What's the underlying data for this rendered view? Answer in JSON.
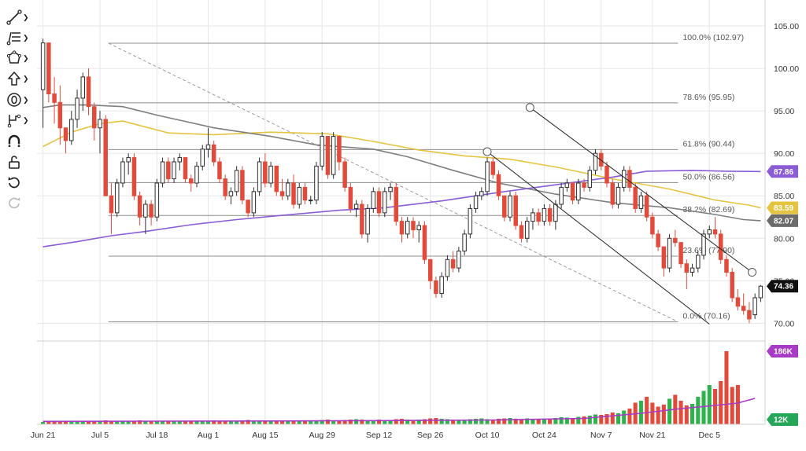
{
  "toolbar": {
    "items": [
      {
        "name": "trend-line-tool",
        "icon": "trend-line-icon"
      },
      {
        "name": "fib-tool",
        "icon": "fib-retracement-icon"
      },
      {
        "name": "shapes-tool",
        "icon": "shapes-icon"
      },
      {
        "name": "arrow-tool",
        "icon": "arrow-up-icon"
      },
      {
        "name": "annotation-tool",
        "icon": "annotation-icon"
      },
      {
        "name": "measure-tool",
        "icon": "measure-icon"
      },
      {
        "name": "magnet-tool",
        "icon": "magnet-icon"
      },
      {
        "name": "lock-tool",
        "icon": "lock-icon"
      },
      {
        "name": "undo-tool",
        "icon": "undo-icon"
      },
      {
        "name": "redo-tool",
        "icon": "redo-icon"
      }
    ]
  },
  "chart_data": {
    "type": "candlestick",
    "x_labels": [
      "Jun 21",
      "Jul 5",
      "Jul 18",
      "Aug 1",
      "Aug 15",
      "Aug 29",
      "Sep 12",
      "Sep 26",
      "Oct 10",
      "Oct 24",
      "Nov 7",
      "Nov 21",
      "Dec 5"
    ],
    "y_ticks": [
      70.0,
      75.0,
      80.0,
      85.0,
      90.0,
      95.0,
      100.0,
      105.0
    ],
    "y_tick_labels": [
      "70.00",
      "75.00",
      "80.00",
      "85.00",
      "90.00",
      "95.00",
      "100.00",
      "105.00"
    ],
    "ylim": [
      68.0,
      107.5
    ],
    "candles": [
      [
        97.5,
        103.5,
        93.0,
        103.0
      ],
      [
        103.0,
        103.0,
        96.0,
        97.0
      ],
      [
        97.0,
        99.0,
        93.5,
        96.0
      ],
      [
        96.0,
        98.0,
        91.0,
        93.0
      ],
      [
        93.0,
        93.0,
        90.0,
        91.5
      ],
      [
        91.5,
        95.0,
        91.0,
        94.0
      ],
      [
        94.0,
        97.5,
        93.0,
        96.5
      ],
      [
        96.5,
        99.5,
        95.0,
        99.0
      ],
      [
        99.0,
        100.0,
        94.5,
        95.5
      ],
      [
        95.5,
        96.0,
        91.5,
        93.0
      ],
      [
        93.0,
        95.0,
        90.0,
        94.0
      ],
      [
        94.0,
        94.5,
        85.0,
        85.0
      ],
      [
        85.0,
        86.5,
        80.5,
        83.0
      ],
      [
        83.0,
        87.0,
        82.5,
        86.5
      ],
      [
        86.5,
        89.5,
        86.0,
        89.0
      ],
      [
        89.0,
        90.0,
        87.5,
        89.5
      ],
      [
        89.5,
        90.0,
        84.5,
        85.0
      ],
      [
        85.0,
        85.5,
        81.5,
        82.5
      ],
      [
        82.5,
        84.5,
        80.5,
        84.0
      ],
      [
        84.0,
        84.5,
        81.5,
        82.5
      ],
      [
        82.5,
        87.0,
        82.0,
        86.5
      ],
      [
        86.5,
        89.5,
        86.0,
        89.0
      ],
      [
        89.0,
        89.5,
        86.5,
        87.0
      ],
      [
        87.0,
        89.5,
        86.5,
        89.0
      ],
      [
        89.0,
        90.0,
        88.0,
        89.5
      ],
      [
        89.5,
        89.5,
        86.5,
        87.0
      ],
      [
        87.0,
        87.5,
        85.5,
        86.5
      ],
      [
        86.5,
        89.0,
        86.0,
        88.5
      ],
      [
        88.5,
        91.0,
        88.0,
        90.5
      ],
      [
        90.5,
        93.0,
        89.5,
        91.0
      ],
      [
        91.0,
        91.5,
        88.5,
        89.0
      ],
      [
        89.0,
        89.5,
        86.5,
        87.0
      ],
      [
        87.0,
        87.5,
        84.5,
        85.0
      ],
      [
        85.0,
        86.0,
        84.0,
        85.5
      ],
      [
        85.5,
        88.5,
        85.0,
        88.0
      ],
      [
        88.0,
        88.5,
        84.0,
        84.5
      ],
      [
        84.5,
        84.5,
        82.5,
        83.0
      ],
      [
        83.0,
        86.0,
        82.5,
        85.5
      ],
      [
        85.5,
        89.5,
        85.0,
        89.0
      ],
      [
        89.0,
        90.0,
        86.0,
        86.5
      ],
      [
        86.5,
        89.0,
        86.0,
        88.5
      ],
      [
        88.5,
        88.5,
        85.0,
        85.5
      ],
      [
        85.5,
        87.0,
        84.5,
        85.0
      ],
      [
        85.0,
        87.0,
        84.5,
        86.5
      ],
      [
        86.5,
        87.5,
        83.5,
        84.0
      ],
      [
        84.0,
        86.5,
        83.5,
        86.0
      ],
      [
        86.0,
        86.5,
        84.0,
        84.5
      ],
      [
        84.5,
        85.0,
        84.0,
        84.5
      ],
      [
        84.5,
        89.0,
        84.0,
        88.5
      ],
      [
        88.5,
        92.5,
        88.0,
        92.0
      ],
      [
        92.0,
        92.0,
        87.0,
        87.5
      ],
      [
        87.5,
        92.5,
        87.0,
        92.0
      ],
      [
        92.0,
        92.0,
        88.0,
        89.0
      ],
      [
        89.0,
        89.5,
        85.5,
        86.0
      ],
      [
        86.0,
        86.5,
        83.0,
        83.5
      ],
      [
        83.5,
        84.5,
        82.5,
        84.0
      ],
      [
        84.0,
        84.5,
        80.0,
        80.5
      ],
      [
        80.5,
        84.0,
        79.5,
        83.5
      ],
      [
        83.5,
        86.0,
        83.0,
        85.5
      ],
      [
        85.5,
        86.0,
        82.5,
        83.0
      ],
      [
        83.0,
        86.0,
        82.5,
        85.5
      ],
      [
        85.5,
        86.5,
        84.5,
        86.0
      ],
      [
        86.0,
        86.5,
        81.5,
        82.0
      ],
      [
        82.0,
        82.5,
        79.5,
        80.5
      ],
      [
        80.5,
        82.5,
        80.0,
        82.0
      ],
      [
        82.0,
        82.5,
        80.0,
        81.0
      ],
      [
        81.0,
        82.0,
        79.5,
        81.5
      ],
      [
        81.5,
        82.0,
        77.0,
        77.5
      ],
      [
        77.5,
        77.5,
        74.0,
        75.0
      ],
      [
        75.0,
        75.5,
        73.0,
        73.5
      ],
      [
        73.5,
        76.0,
        73.0,
        75.5
      ],
      [
        75.5,
        78.0,
        75.0,
        77.5
      ],
      [
        77.5,
        78.5,
        76.0,
        76.5
      ],
      [
        76.5,
        79.0,
        76.0,
        78.5
      ],
      [
        78.5,
        81.0,
        78.0,
        80.5
      ],
      [
        80.5,
        84.0,
        80.0,
        83.5
      ],
      [
        83.5,
        85.5,
        83.0,
        85.0
      ],
      [
        85.0,
        86.0,
        84.5,
        85.5
      ],
      [
        85.5,
        89.5,
        85.0,
        89.0
      ],
      [
        89.0,
        89.5,
        87.0,
        87.5
      ],
      [
        87.5,
        88.0,
        84.5,
        85.0
      ],
      [
        85.0,
        85.0,
        82.0,
        82.5
      ],
      [
        82.5,
        85.5,
        82.0,
        85.0
      ],
      [
        85.0,
        85.5,
        81.0,
        81.5
      ],
      [
        81.5,
        82.0,
        79.5,
        80.0
      ],
      [
        80.0,
        82.5,
        79.5,
        82.0
      ],
      [
        82.0,
        83.5,
        81.0,
        83.0
      ],
      [
        83.0,
        83.5,
        81.5,
        82.0
      ],
      [
        82.0,
        84.0,
        81.5,
        83.5
      ],
      [
        83.5,
        84.0,
        81.5,
        82.0
      ],
      [
        82.0,
        84.5,
        81.0,
        84.0
      ],
      [
        84.0,
        86.5,
        83.5,
        86.0
      ],
      [
        86.0,
        87.0,
        85.5,
        86.5
      ],
      [
        86.5,
        86.5,
        84.0,
        84.5
      ],
      [
        84.5,
        87.0,
        84.0,
        86.5
      ],
      [
        86.5,
        87.0,
        85.5,
        86.0
      ],
      [
        86.0,
        88.5,
        85.5,
        88.0
      ],
      [
        88.0,
        90.5,
        87.5,
        90.0
      ],
      [
        90.0,
        90.5,
        88.0,
        88.5
      ],
      [
        88.5,
        89.0,
        86.0,
        86.5
      ],
      [
        86.5,
        87.0,
        83.5,
        84.0
      ],
      [
        84.0,
        86.5,
        83.5,
        86.0
      ],
      [
        86.0,
        88.5,
        85.5,
        88.0
      ],
      [
        88.0,
        88.5,
        85.5,
        86.0
      ],
      [
        86.0,
        86.5,
        83.0,
        83.5
      ],
      [
        83.5,
        85.5,
        83.0,
        85.0
      ],
      [
        85.0,
        85.5,
        82.0,
        82.5
      ],
      [
        82.5,
        83.0,
        80.0,
        80.5
      ],
      [
        80.5,
        81.0,
        78.5,
        79.0
      ],
      [
        79.0,
        79.0,
        75.5,
        76.5
      ],
      [
        76.5,
        80.5,
        76.0,
        80.0
      ],
      [
        80.0,
        81.0,
        79.0,
        79.5
      ],
      [
        79.5,
        79.5,
        76.5,
        77.0
      ],
      [
        77.0,
        77.5,
        74.0,
        76.0
      ],
      [
        76.0,
        77.0,
        75.5,
        76.5
      ],
      [
        76.5,
        78.5,
        76.0,
        78.0
      ],
      [
        78.0,
        81.0,
        77.5,
        80.5
      ],
      [
        80.5,
        81.5,
        80.0,
        81.0
      ],
      [
        81.0,
        82.5,
        80.0,
        80.5
      ],
      [
        80.5,
        81.0,
        77.0,
        77.5
      ],
      [
        77.5,
        78.0,
        75.5,
        76.0
      ],
      [
        76.0,
        76.5,
        72.5,
        73.0
      ],
      [
        73.0,
        74.0,
        71.5,
        72.0
      ],
      [
        72.0,
        73.5,
        71.0,
        71.5
      ],
      [
        71.5,
        72.5,
        70.0,
        70.5
      ],
      [
        71.0,
        73.5,
        70.5,
        73.0
      ],
      [
        73.0,
        74.5,
        72.5,
        74.36
      ]
    ],
    "volume": [
      6,
      6,
      7,
      7,
      6,
      6,
      7,
      7,
      8,
      7,
      9,
      10,
      8,
      7,
      8,
      7,
      9,
      10,
      8,
      7,
      8,
      9,
      8,
      7,
      8,
      9,
      8,
      7,
      8,
      9,
      10,
      9,
      8,
      9,
      8,
      10,
      11,
      9,
      8,
      10,
      9,
      8,
      9,
      10,
      9,
      8,
      9,
      8,
      10,
      11,
      12,
      10,
      9,
      11,
      12,
      13,
      12,
      11,
      10,
      12,
      11,
      10,
      13,
      14,
      12,
      11,
      12,
      13,
      15,
      16,
      14,
      13,
      12,
      11,
      12,
      13,
      14,
      15,
      13,
      12,
      14,
      15,
      16,
      14,
      13,
      15,
      14,
      13,
      14,
      15,
      16,
      18,
      17,
      16,
      19,
      20,
      22,
      25,
      24,
      26,
      30,
      28,
      35,
      40,
      55,
      60,
      70,
      55,
      45,
      50,
      65,
      75,
      60,
      48,
      52,
      70,
      85,
      100,
      90,
      110,
      186,
      95,
      100
    ],
    "sma_grey": [
      [
        0,
        95.4
      ],
      [
        3,
        95.7
      ],
      [
        8,
        95.7
      ],
      [
        14,
        95.5
      ],
      [
        20,
        94.5
      ],
      [
        30,
        93.0
      ],
      [
        40,
        92.0
      ],
      [
        48,
        91.0
      ],
      [
        58,
        90.5
      ],
      [
        64,
        89.6
      ],
      [
        72,
        88.0
      ],
      [
        80,
        86.5
      ],
      [
        90,
        85.2
      ],
      [
        100,
        84.2
      ],
      [
        110,
        83.6
      ],
      [
        118,
        82.8
      ],
      [
        123,
        82.2
      ],
      [
        126,
        82.07
      ]
    ],
    "sma_yellow": [
      [
        0,
        90.8
      ],
      [
        5,
        92.5
      ],
      [
        10,
        93.5
      ],
      [
        14,
        93.8
      ],
      [
        22,
        92.4
      ],
      [
        30,
        92.2
      ],
      [
        40,
        92.5
      ],
      [
        50,
        92.3
      ],
      [
        58,
        91.4
      ],
      [
        66,
        90.4
      ],
      [
        74,
        89.7
      ],
      [
        82,
        89.3
      ],
      [
        90,
        88.4
      ],
      [
        100,
        87.0
      ],
      [
        110,
        85.8
      ],
      [
        118,
        84.5
      ],
      [
        124,
        83.9
      ],
      [
        126,
        83.59
      ]
    ],
    "sma_purple": [
      [
        0,
        79.0
      ],
      [
        6,
        79.6
      ],
      [
        12,
        80.3
      ],
      [
        18,
        80.8
      ],
      [
        26,
        81.6
      ],
      [
        34,
        82.2
      ],
      [
        42,
        82.7
      ],
      [
        52,
        83.3
      ],
      [
        60,
        83.6
      ],
      [
        70,
        84.4
      ],
      [
        80,
        85.4
      ],
      [
        90,
        86.3
      ],
      [
        100,
        87.2
      ],
      [
        106,
        87.9
      ],
      [
        114,
        88.0
      ],
      [
        120,
        87.9
      ],
      [
        126,
        87.86
      ]
    ],
    "vol_ma": [
      [
        0,
        7.5
      ],
      [
        20,
        8.0
      ],
      [
        40,
        8.5
      ],
      [
        60,
        9.5
      ],
      [
        80,
        11.0
      ],
      [
        95,
        15.0
      ],
      [
        105,
        28.0
      ],
      [
        112,
        40.0
      ],
      [
        118,
        48.0
      ],
      [
        122,
        54.0
      ],
      [
        125,
        66.0
      ]
    ],
    "fib_levels": [
      {
        "label": "100.0% (102.97)",
        "value": 102.97
      },
      {
        "label": "78.6% (95.95)",
        "value": 95.95
      },
      {
        "label": "61.8% (90.44)",
        "value": 90.44
      },
      {
        "label": "50.0% (86.56)",
        "value": 86.56
      },
      {
        "label": "38.2% (82.69)",
        "value": 82.69
      },
      {
        "label": "23.6% (77.90)",
        "value": 77.9
      },
      {
        "label": "0.0% (70.16)",
        "value": 70.16
      }
    ],
    "fib_x_range": [
      11.5,
      111.5
    ],
    "fib_diagonal": [
      [
        11.5,
        102.97
      ],
      [
        111.5,
        70.16
      ]
    ],
    "channel_lines": [
      [
        [
          85.5,
          95.4
        ],
        [
          124.5,
          76.0
        ]
      ],
      [
        [
          78,
          90.2
        ],
        [
          117,
          69.9
        ]
      ]
    ],
    "price_tags": [
      {
        "label": "87.86",
        "value": 87.86,
        "color": "#8A5CD6"
      },
      {
        "label": "83.59",
        "value": 83.59,
        "color": "#E4C441"
      },
      {
        "label": "82.07",
        "value": 82.07,
        "color": "#6B6B6B"
      },
      {
        "label": "74.36",
        "value": 74.36,
        "color": "#111111"
      }
    ],
    "volume_tags": [
      {
        "label": "186K",
        "level": 186,
        "color": "#A73BC6"
      },
      {
        "label": "12K",
        "level": 12,
        "color": "#26A659"
      }
    ],
    "colors": {
      "up": "#2E2E2E",
      "down": "#E24A3B",
      "vol_up": "#2FB24C",
      "vol_down": "#E24A3B",
      "grey_ma": "#7E7E7E",
      "yellow_ma": "#E4C441",
      "purple_ma": "#8A5CD6",
      "vol_ma": "#A73BC6",
      "grid": "#E6E6E6",
      "fib": "#8C8C8C"
    }
  }
}
